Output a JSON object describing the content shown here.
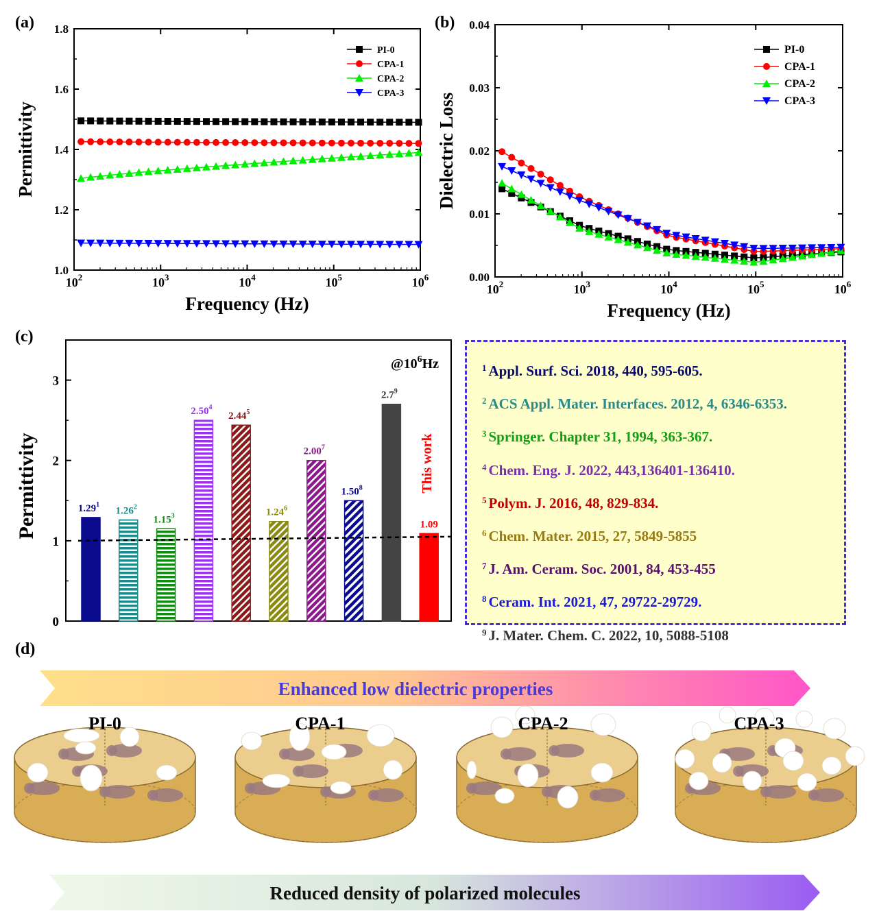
{
  "panels": {
    "a": {
      "tag": "(a)",
      "chart_data": {
        "type": "line",
        "xscale": "log",
        "xlabel": "Frequency (Hz)",
        "ylabel": "Permittivity",
        "xlim": [
          100,
          1000000
        ],
        "ylim": [
          1.0,
          1.8
        ],
        "xticks": [
          {
            "base": "10",
            "exp": "2"
          },
          {
            "base": "10",
            "exp": "3"
          },
          {
            "base": "10",
            "exp": "4"
          },
          {
            "base": "10",
            "exp": "5"
          },
          {
            "base": "10",
            "exp": "6"
          }
        ],
        "yticks": [
          "1.0",
          "1.2",
          "1.4",
          "1.6",
          "1.8"
        ],
        "legend_position": "top-right",
        "series": [
          {
            "name": "PI-0",
            "color": "#000000",
            "marker": "square",
            "start": 1.495,
            "end": 1.49
          },
          {
            "name": "CPA-1",
            "color": "#ff0000",
            "marker": "circle",
            "start": 1.426,
            "end": 1.42
          },
          {
            "name": "CPA-2",
            "color": "#00ee00",
            "marker": "triangle-up",
            "start": 1.3,
            "end": 1.39
          },
          {
            "name": "CPA-3",
            "color": "#0000ff",
            "marker": "triangle-down",
            "start": 1.09,
            "end": 1.085
          }
        ]
      }
    },
    "b": {
      "tag": "(b)",
      "chart_data": {
        "type": "line",
        "xscale": "log",
        "xlabel": "Frequency (Hz)",
        "ylabel": "Dielectric Loss",
        "xlim": [
          100,
          1000000
        ],
        "ylim": [
          0.0,
          0.04
        ],
        "xticks": [
          {
            "base": "10",
            "exp": "2"
          },
          {
            "base": "10",
            "exp": "3"
          },
          {
            "base": "10",
            "exp": "4"
          },
          {
            "base": "10",
            "exp": "5"
          },
          {
            "base": "10",
            "exp": "6"
          }
        ],
        "yticks": [
          "0.00",
          "0.01",
          "0.02",
          "0.03",
          "0.04"
        ],
        "legend_position": "top-right",
        "series": [
          {
            "name": "PI-0",
            "color": "#000000",
            "marker": "square",
            "points": [
              [
                100,
                0.0145
              ],
              [
                1000,
                0.008
              ],
              [
                10000,
                0.0043
              ],
              [
                100000,
                0.003
              ],
              [
                1000000,
                0.004
              ]
            ]
          },
          {
            "name": "CPA-1",
            "color": "#ff0000",
            "marker": "circle",
            "points": [
              [
                100,
                0.0205
              ],
              [
                1000,
                0.0125
              ],
              [
                10000,
                0.0065
              ],
              [
                100000,
                0.004
              ],
              [
                1000000,
                0.0045
              ]
            ]
          },
          {
            "name": "CPA-2",
            "color": "#00ee00",
            "marker": "triangle-up",
            "points": [
              [
                100,
                0.0155
              ],
              [
                1000,
                0.0075
              ],
              [
                10000,
                0.0037
              ],
              [
                100000,
                0.0023
              ],
              [
                1000000,
                0.0042
              ]
            ]
          },
          {
            "name": "CPA-3",
            "color": "#0000ff",
            "marker": "triangle-down",
            "points": [
              [
                100,
                0.018
              ],
              [
                1000,
                0.012
              ],
              [
                10000,
                0.0068
              ],
              [
                100000,
                0.0045
              ],
              [
                1000000,
                0.0047
              ]
            ]
          }
        ]
      }
    },
    "c": {
      "tag": "(c)",
      "annotation": {
        "prefix": "@10",
        "exp": "6",
        "suffix": "Hz"
      },
      "chart_data": {
        "type": "bar",
        "ylabel": "Permittivity",
        "ylim": [
          0,
          3.5
        ],
        "yticks": [
          "0",
          "1",
          "2",
          "3"
        ],
        "reference_line": 1.0,
        "bars": [
          {
            "value": 1.29,
            "label": "1.29",
            "ref": "1",
            "color": "#0a0a8c",
            "pattern": "solid"
          },
          {
            "value": 1.26,
            "label": "1.26",
            "ref": "2",
            "color": "#1a8a8a",
            "pattern": "hstripe"
          },
          {
            "value": 1.15,
            "label": "1.15",
            "ref": "3",
            "color": "#138a13",
            "pattern": "hstripe"
          },
          {
            "value": 2.5,
            "label": "2.50",
            "ref": "4",
            "color": "#9933ee",
            "pattern": "hstripe"
          },
          {
            "value": 2.44,
            "label": "2.44",
            "ref": "5",
            "color": "#8b1a1a",
            "pattern": "diag"
          },
          {
            "value": 1.24,
            "label": "1.24",
            "ref": "6",
            "color": "#8a8a10",
            "pattern": "diag"
          },
          {
            "value": 2.0,
            "label": "2.00",
            "ref": "7",
            "color": "#8a1a8a",
            "pattern": "diag"
          },
          {
            "value": 1.5,
            "label": "1.50",
            "ref": "8",
            "color": "#0a0a8c",
            "pattern": "diag-light"
          },
          {
            "value": 2.7,
            "label": "2.7",
            "ref": "9",
            "color": "#444444",
            "pattern": "solid"
          },
          {
            "value": 1.09,
            "label": "1.09",
            "ref": "",
            "color": "#ff0000",
            "pattern": "solid"
          }
        ],
        "this_work_label": "This work",
        "this_work_color": "#ff0000"
      }
    },
    "refs": [
      {
        "num": "1",
        "text": "Appl. Surf. Sci. 2018, 440, 595-605.",
        "color": "#0a0a6e"
      },
      {
        "num": "2",
        "text": "ACS Appl. Mater. Interfaces. 2012, 4, 6346-6353.",
        "color": "#2a8a8a"
      },
      {
        "num": "3",
        "text": "Springer. Chapter 31, 1994, 363-367.",
        "color": "#12a012"
      },
      {
        "num": "4",
        "text": "Chem. Eng. J. 2022, 443,136401-136410.",
        "color": "#7a30a8"
      },
      {
        "num": "5",
        "text": "Polym. J. 2016, 48, 829-834.",
        "color": "#c00000"
      },
      {
        "num": "6",
        "text": "Chem. Mater. 2015, 27, 5849-5855",
        "color": "#9a7a10"
      },
      {
        "num": "7",
        "text": "J. Am. Ceram. Soc. 2001, 84, 453-455",
        "color": "#5a1070"
      },
      {
        "num": "8",
        "text": "Ceram. Int. 2021, 47, 29722-29729.",
        "color": "#1a1ad0"
      },
      {
        "num": "9",
        "text": "J. Mater. Chem. C. 2022, 10, 5088-5108",
        "color": "#333333"
      }
    ],
    "d": {
      "tag": "(d)",
      "top_arrow_text": "Enhanced low dielectric properties",
      "top_arrow_text_color": "#4a3ad8",
      "bottom_arrow_text": "Reduced density of polarized molecules",
      "samples": [
        "PI-0",
        "CPA-1",
        "CPA-2",
        "CPA-3"
      ]
    }
  }
}
